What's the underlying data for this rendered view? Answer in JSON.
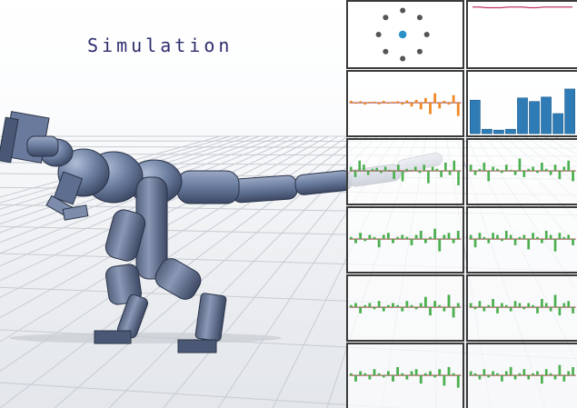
{
  "title": "Simulation",
  "colors": {
    "robot_body": "#6c7ea0",
    "positive_bar": "#4caf50",
    "negative_bar": "#43a047",
    "orange_bar": "#f08a24",
    "blue_bar": "#2e7bb5",
    "phase_dot": "#2a90c8",
    "line": "#c0336a",
    "baseline": "#8b1a1a"
  },
  "panels": {
    "phase": {
      "label": "phase-clock",
      "dots": 8,
      "active_index": 0
    },
    "trace": {
      "label": "reward-trace",
      "values": [
        0.92,
        0.92,
        0.91,
        0.91,
        0.91,
        0.92,
        0.92,
        0.92,
        0.91,
        0.91,
        0.92,
        0.92,
        0.92,
        0.92,
        0.92
      ]
    },
    "orange_bars": [
      0.1,
      -0.05,
      0.08,
      -0.1,
      0.05,
      0.06,
      -0.08,
      0.1,
      -0.05,
      0.05,
      0.08,
      -0.1,
      0.12,
      -0.2,
      0.15,
      -0.35,
      0.25,
      -0.6,
      0.5,
      -0.3,
      0.1,
      -0.1,
      0.4,
      -0.7
    ],
    "blue_bars": [
      0.75,
      0.1,
      0.08,
      0.1,
      0.8,
      0.72,
      0.82,
      0.45,
      1.0
    ],
    "green_sets": [
      [
        0.2,
        -0.3,
        0.5,
        0.3,
        -0.2,
        0.1,
        0.15,
        -0.1,
        0.2,
        0.05,
        -0.4,
        0.3,
        -0.5,
        0.1,
        0.05,
        0.2,
        -0.1,
        0.3,
        -0.6,
        0.2,
        0.1,
        -0.3,
        0.4,
        -0.2,
        0.5,
        -0.7
      ],
      [
        0.3,
        -0.2,
        0.1,
        0.4,
        -0.5,
        0.2,
        0.1,
        -0.1,
        0.3,
        0.05,
        -0.2,
        0.6,
        -0.3,
        0.1,
        0.2,
        -0.1,
        0.4,
        0.1,
        -0.2,
        0.3,
        -0.4,
        0.2,
        0.5,
        -0.5
      ],
      [
        0.1,
        -0.2,
        0.3,
        -0.1,
        0.2,
        0.1,
        -0.4,
        0.2,
        0.3,
        -0.2,
        0.1,
        0.2,
        0.1,
        -0.3,
        0.2,
        0.4,
        -0.2,
        0.1,
        0.5,
        -0.6,
        0.2,
        0.3,
        -0.2,
        0.4
      ],
      [
        0.2,
        -0.4,
        0.3,
        0.1,
        -0.2,
        0.3,
        0.2,
        -0.1,
        0.4,
        0.2,
        -0.3,
        0.1,
        0.2,
        -0.5,
        0.3,
        0.1,
        -0.2,
        0.4,
        0.2,
        -0.6,
        0.3,
        0.1,
        0.2,
        -0.3
      ],
      [
        0.1,
        0.2,
        -0.3,
        0.1,
        0.2,
        -0.1,
        0.3,
        -0.2,
        0.1,
        0.2,
        0.1,
        -0.2,
        0.3,
        0.1,
        -0.1,
        0.2,
        0.5,
        -0.4,
        0.3,
        0.1,
        -0.2,
        0.6,
        -0.5,
        0.2
      ],
      [
        0.2,
        -0.1,
        0.3,
        -0.2,
        0.1,
        0.4,
        -0.3,
        0.2,
        0.1,
        -0.2,
        0.3,
        0.2,
        -0.1,
        0.2,
        0.1,
        -0.3,
        0.4,
        0.2,
        -0.2,
        0.6,
        -0.4,
        0.2,
        0.3,
        -0.3
      ],
      [
        0.1,
        -0.3,
        0.2,
        0.1,
        -0.2,
        0.3,
        0.1,
        -0.1,
        0.2,
        -0.3,
        0.4,
        0.1,
        -0.2,
        0.2,
        0.3,
        -0.4,
        0.1,
        0.2,
        -0.1,
        0.3,
        -0.5,
        0.4,
        0.1,
        -0.6
      ],
      [
        0.2,
        0.1,
        -0.2,
        0.3,
        -0.1,
        0.2,
        0.1,
        -0.3,
        0.2,
        0.4,
        -0.2,
        0.1,
        0.3,
        -0.2,
        0.1,
        0.2,
        -0.4,
        0.3,
        0.1,
        -0.2,
        0.5,
        -0.3,
        0.2,
        0.4
      ]
    ]
  }
}
